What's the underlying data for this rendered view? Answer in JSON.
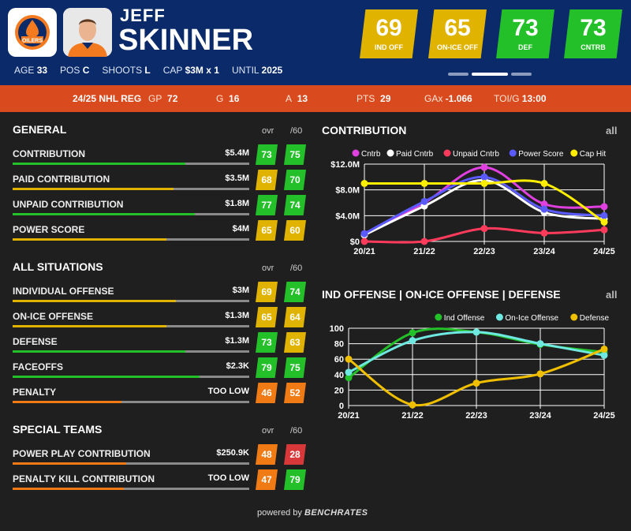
{
  "player": {
    "first_name": "JEFF",
    "last_name": "SKINNER",
    "team_logo_text": "OILERS",
    "meta": [
      {
        "label": "AGE",
        "value": "33"
      },
      {
        "label": "POS",
        "value": "C"
      },
      {
        "label": "SHOOTS",
        "value": "L"
      },
      {
        "label": "CAP",
        "value": "$3M x 1"
      },
      {
        "label": "UNTIL",
        "value": "2025"
      }
    ]
  },
  "badges": [
    {
      "value": "69",
      "label": "IND OFF",
      "color": "#e0b300"
    },
    {
      "value": "65",
      "label": "ON-ICE OFF",
      "color": "#e0b300"
    },
    {
      "value": "73",
      "label": "DEF",
      "color": "#23c02a"
    },
    {
      "value": "73",
      "label": "CNTRB",
      "color": "#23c02a"
    }
  ],
  "statbar": {
    "season": "24/25 NHL REG",
    "gp_label": "GP",
    "gp": "72",
    "g_label": "G",
    "g": "16",
    "a_label": "A",
    "a": "13",
    "pts_label": "PTS",
    "pts": "29",
    "gax_label": "GAx",
    "gax": "-1.066",
    "toi_label": "TOI/G",
    "toi": "13:00"
  },
  "col_headers": {
    "ovr": "ovr",
    "per60": "/60"
  },
  "sections": [
    {
      "title": "GENERAL",
      "rows": [
        {
          "name": "CONTRIBUTION",
          "value": "$5.4M",
          "ovr": "73",
          "p60": "75",
          "ovr_color": "#23c02a",
          "p60_color": "#23c02a",
          "bar_color": "#23c02a",
          "fill": 0.73
        },
        {
          "name": "PAID CONTRIBUTION",
          "value": "$3.5M",
          "ovr": "68",
          "p60": "70",
          "ovr_color": "#e0b300",
          "p60_color": "#23c02a",
          "bar_color": "#e0b300",
          "fill": 0.68
        },
        {
          "name": "UNPAID CONTRIBUTION",
          "value": "$1.8M",
          "ovr": "77",
          "p60": "74",
          "ovr_color": "#23c02a",
          "p60_color": "#23c02a",
          "bar_color": "#23c02a",
          "fill": 0.77
        },
        {
          "name": "POWER SCORE",
          "value": "$4M",
          "ovr": "65",
          "p60": "60",
          "ovr_color": "#e0b300",
          "p60_color": "#e0b300",
          "bar_color": "#e0b300",
          "fill": 0.65
        }
      ]
    },
    {
      "title": "ALL SITUATIONS",
      "rows": [
        {
          "name": "INDIVIDUAL OFFENSE",
          "value": "$3M",
          "ovr": "69",
          "p60": "74",
          "ovr_color": "#e0b300",
          "p60_color": "#23c02a",
          "bar_color": "#e0b300",
          "fill": 0.69
        },
        {
          "name": "ON-ICE OFFENSE",
          "value": "$1.3M",
          "ovr": "65",
          "p60": "64",
          "ovr_color": "#e0b300",
          "p60_color": "#e0b300",
          "bar_color": "#e0b300",
          "fill": 0.65
        },
        {
          "name": "DEFENSE",
          "value": "$1.3M",
          "ovr": "73",
          "p60": "63",
          "ovr_color": "#23c02a",
          "p60_color": "#e0b300",
          "bar_color": "#23c02a",
          "fill": 0.73
        },
        {
          "name": "FACEOFFS",
          "value": "$2.3K",
          "ovr": "79",
          "p60": "75",
          "ovr_color": "#23c02a",
          "p60_color": "#23c02a",
          "bar_color": "#23c02a",
          "fill": 0.79
        },
        {
          "name": "PENALTY",
          "value": "TOO LOW",
          "ovr": "46",
          "p60": "52",
          "ovr_color": "#f07a14",
          "p60_color": "#f07a14",
          "bar_color": "#f07a14",
          "fill": 0.46
        }
      ]
    },
    {
      "title": "SPECIAL TEAMS",
      "rows": [
        {
          "name": "POWER PLAY CONTRIBUTION",
          "value": "$250.9K",
          "ovr": "48",
          "p60": "28",
          "ovr_color": "#f07a14",
          "p60_color": "#d9383a",
          "bar_color": "#f07a14",
          "fill": 0.48
        },
        {
          "name": "PENALTY KILL CONTRIBUTION",
          "value": "TOO LOW",
          "ovr": "47",
          "p60": "79",
          "ovr_color": "#f07a14",
          "p60_color": "#23c02a",
          "bar_color": "#f07a14",
          "fill": 0.47
        }
      ]
    }
  ],
  "charts": {
    "all_label": "all",
    "contribution": {
      "title": "CONTRIBUTION",
      "type": "line",
      "x": [
        "20/21",
        "21/22",
        "22/23",
        "23/24",
        "24/25"
      ],
      "y_ticks": [
        "$0",
        "$4.0M",
        "$8.0M",
        "$12.0M"
      ],
      "ylim": [
        0,
        12
      ],
      "series": [
        {
          "name": "Cntrb",
          "color": "#e040e0",
          "values": [
            1.2,
            6,
            11.5,
            5.8,
            5.4
          ]
        },
        {
          "name": "Paid Cntrb",
          "color": "#ffffff",
          "values": [
            1.0,
            5.5,
            9.5,
            4.5,
            3.5
          ]
        },
        {
          "name": "Unpaid Cntrb",
          "color": "#ff3b5c",
          "values": [
            0,
            0,
            2.0,
            1.3,
            1.8
          ]
        },
        {
          "name": "Power Score",
          "color": "#5a5aff",
          "values": [
            1.2,
            6.2,
            10.0,
            5.0,
            4.0
          ]
        },
        {
          "name": "Cap Hit",
          "color": "#ffee00",
          "values": [
            9,
            9,
            9,
            9,
            3
          ]
        }
      ]
    },
    "offense": {
      "title": "IND OFFENSE | ON-ICE OFFENSE | DEFENSE",
      "type": "line",
      "x": [
        "20/21",
        "21/22",
        "22/23",
        "23/24",
        "24/25"
      ],
      "y_ticks": [
        "0",
        "20",
        "40",
        "60",
        "80",
        "100"
      ],
      "ylim": [
        0,
        100
      ],
      "series": [
        {
          "name": "Ind Offense",
          "color": "#23c02a",
          "values": [
            36,
            94,
            95,
            79,
            69
          ]
        },
        {
          "name": "On-Ice Offense",
          "color": "#6ee8e0",
          "values": [
            43,
            84,
            95,
            80,
            65
          ]
        },
        {
          "name": "Defense",
          "color": "#f0c000",
          "values": [
            60,
            1,
            29,
            41,
            73
          ]
        }
      ]
    }
  },
  "footer": {
    "powered": "powered by",
    "brand": "BENCHRATES"
  }
}
